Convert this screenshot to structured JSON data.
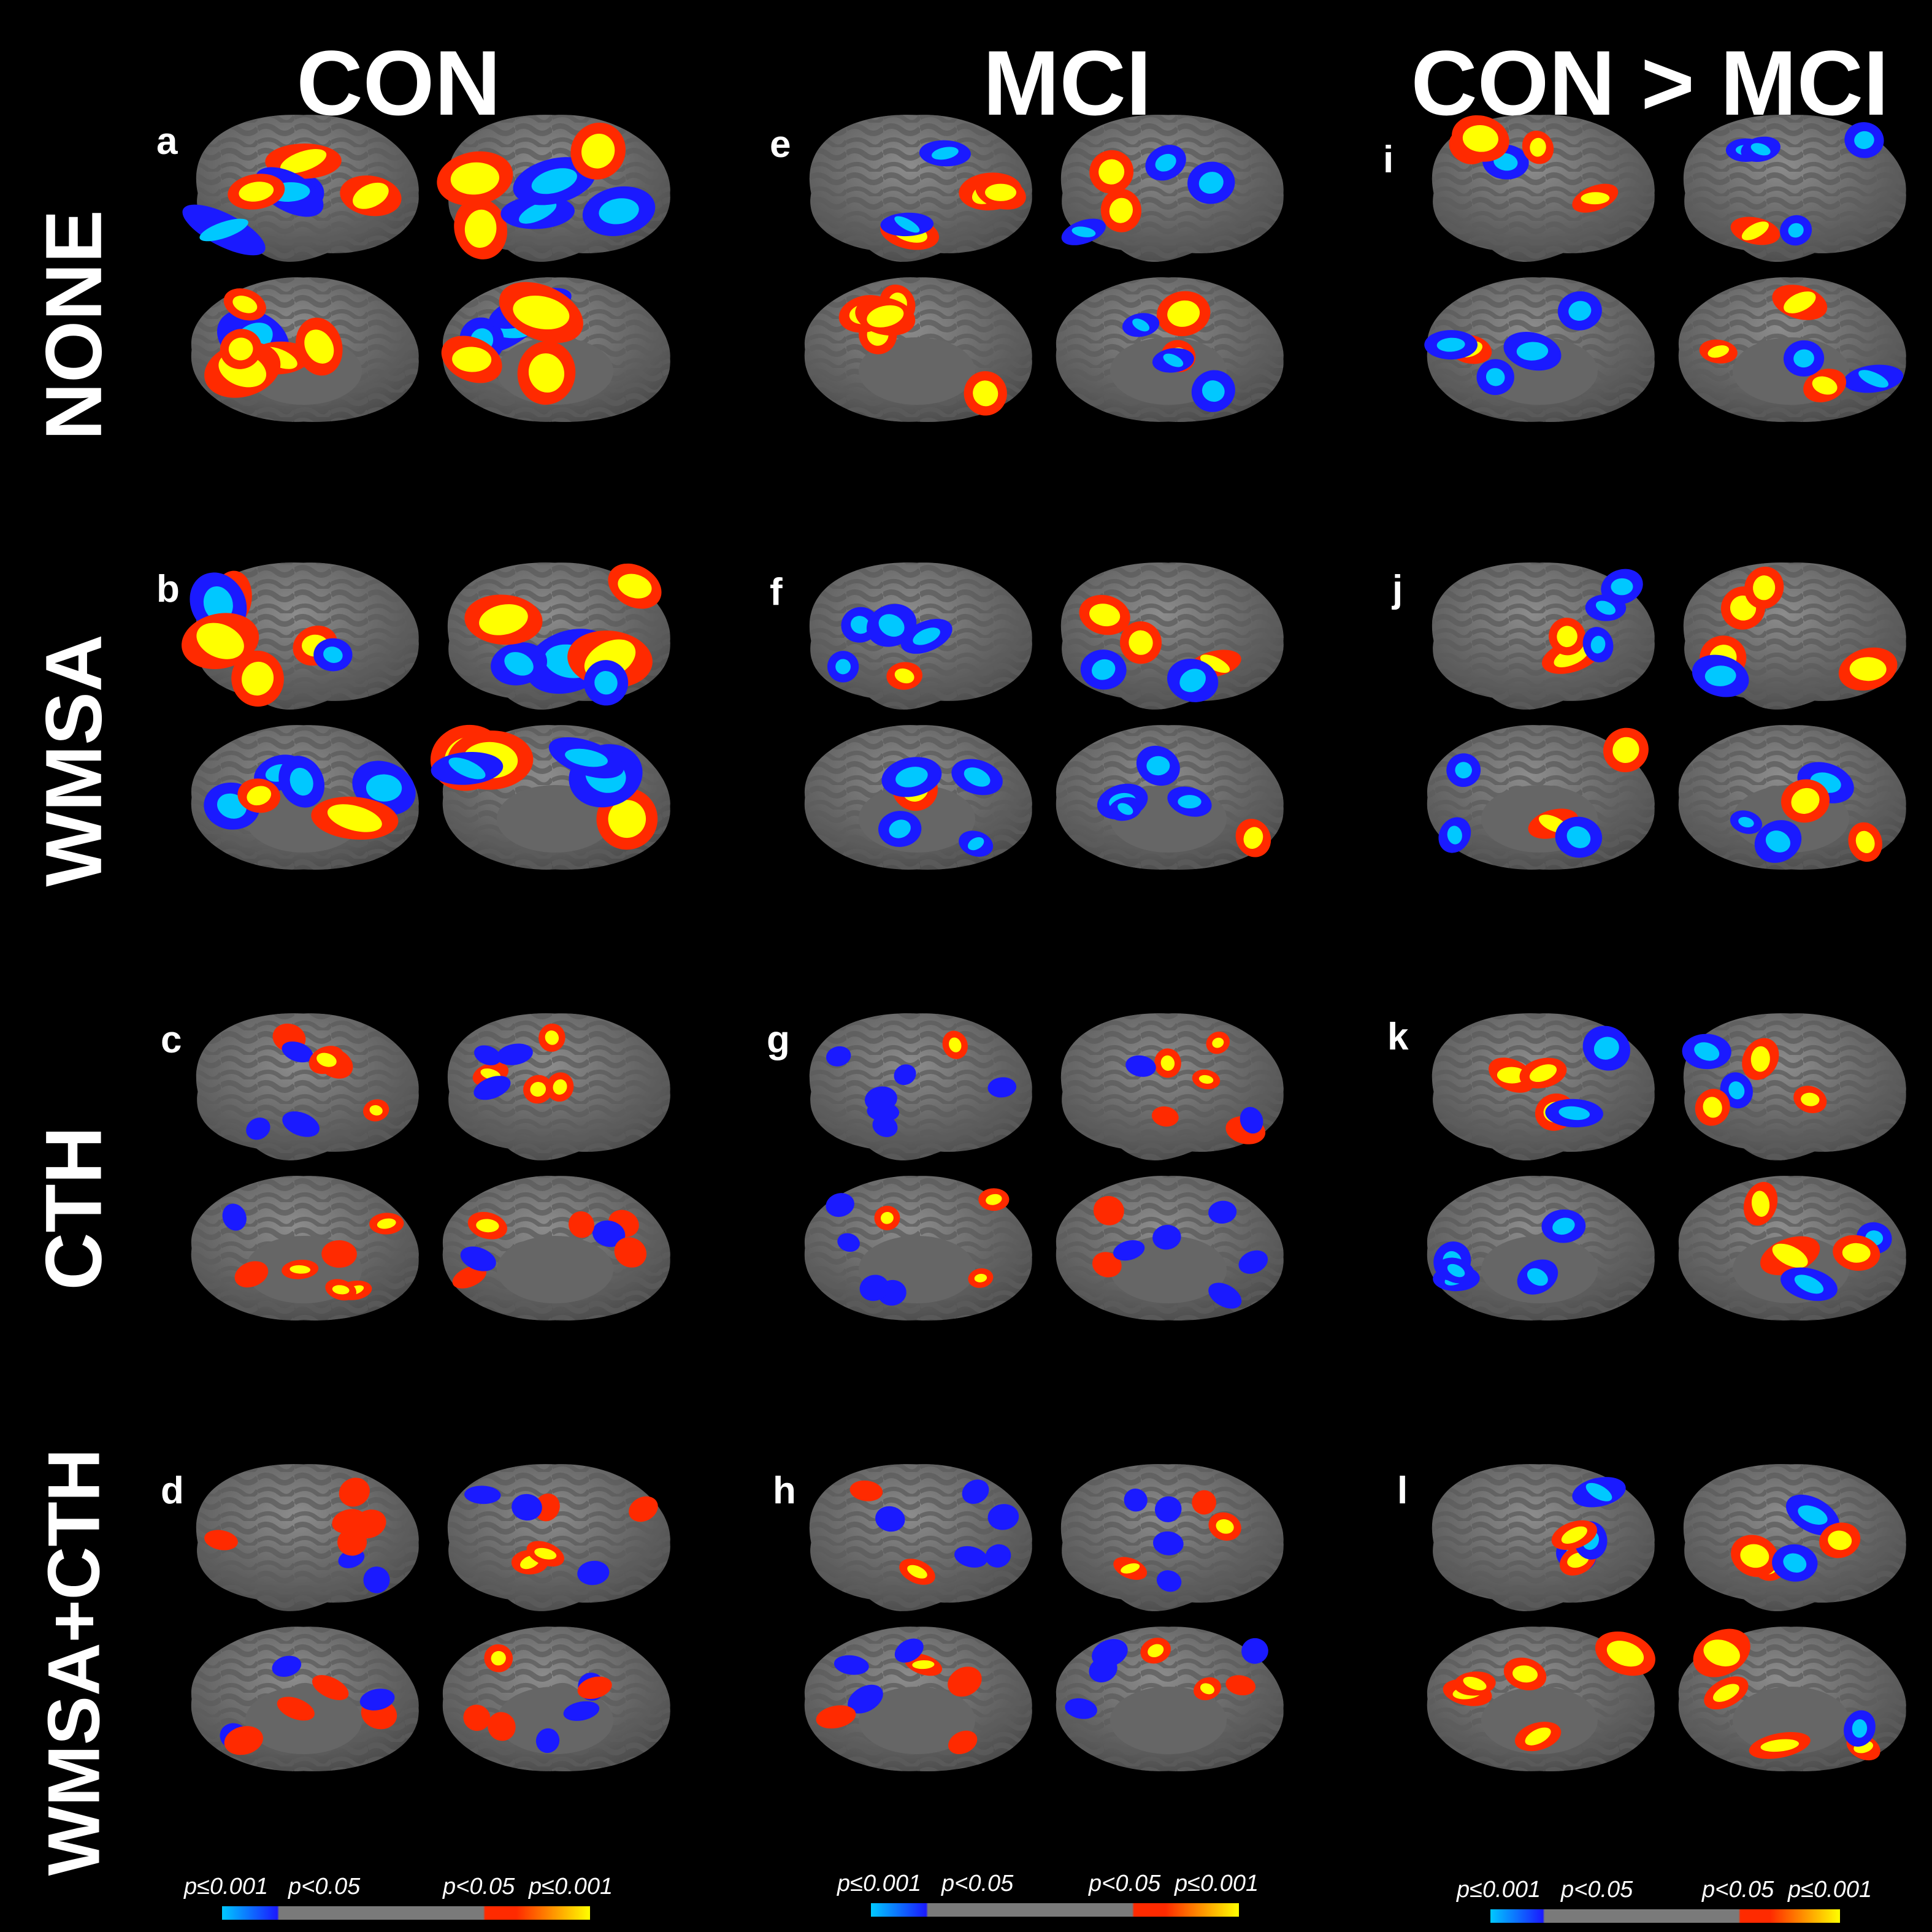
{
  "columns": [
    "CON",
    "MCI",
    "CON > MCI"
  ],
  "rows": [
    "NONE",
    "WMSA",
    "CTH",
    "WMSA+CTH"
  ],
  "panel_letters": [
    [
      "a",
      "e",
      "i"
    ],
    [
      "b",
      "f",
      "j"
    ],
    [
      "c",
      "g",
      "k"
    ],
    [
      "d",
      "h",
      "l"
    ]
  ],
  "colorbar": {
    "labels": [
      "p≤0.001",
      "p<0.05",
      "p<0.05",
      "p≤0.001"
    ],
    "colors": {
      "neg_strong": "#00c8ff",
      "neg_weak": "#1a1aff",
      "neutral": "#7a7a7a",
      "pos_weak": "#ff2a00",
      "pos_strong": "#ffff00"
    }
  },
  "colors": {
    "background": "#000000",
    "cortex_light": "#8c8c8c",
    "cortex_dark": "#5c5c5c",
    "outline": "#33cc33"
  }
}
